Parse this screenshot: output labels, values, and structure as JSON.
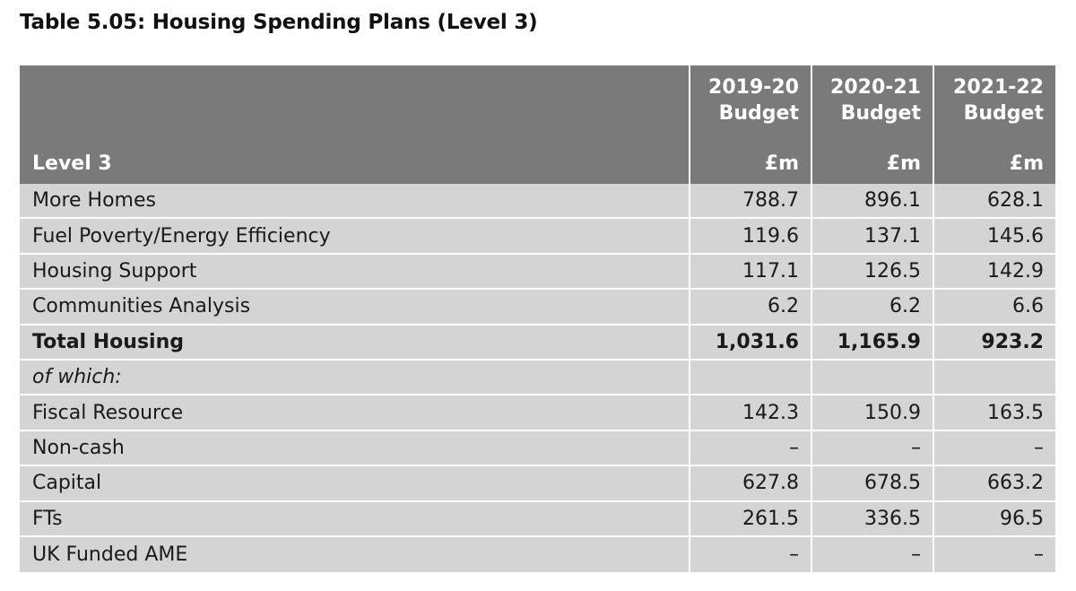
{
  "title": "Table 5.05: Housing Spending Plans (Level 3)",
  "header": {
    "level_label": "Level 3",
    "columns": [
      {
        "year": "2019-20",
        "type": "Budget",
        "unit": "£m"
      },
      {
        "year": "2020-21",
        "type": "Budget",
        "unit": "£m"
      },
      {
        "year": "2021-22",
        "type": "Budget",
        "unit": "£m"
      }
    ]
  },
  "rows": [
    {
      "label": "More Homes",
      "values": [
        "788.7",
        "896.1",
        "628.1"
      ]
    },
    {
      "label": "Fuel Poverty/Energy Efficiency",
      "values": [
        "119.6",
        "137.1",
        "145.6"
      ]
    },
    {
      "label": "Housing Support",
      "values": [
        "117.1",
        "126.5",
        "142.9"
      ]
    },
    {
      "label": "Communities Analysis",
      "values": [
        "6.2",
        "6.2",
        "6.6"
      ]
    },
    {
      "label": "Total Housing",
      "values": [
        "1,031.6",
        "1,165.9",
        "923.2"
      ]
    },
    {
      "label": "of which:",
      "values": [
        "",
        "",
        ""
      ]
    },
    {
      "label": "Fiscal Resource",
      "values": [
        "142.3",
        "150.9",
        "163.5"
      ]
    },
    {
      "label": "Non-cash",
      "values": [
        "–",
        "–",
        "–"
      ]
    },
    {
      "label": "Capital",
      "values": [
        "627.8",
        "678.5",
        "663.2"
      ]
    },
    {
      "label": "FTs",
      "values": [
        "261.5",
        "336.5",
        "96.5"
      ]
    },
    {
      "label": "UK Funded AME",
      "values": [
        "–",
        "–",
        "–"
      ]
    }
  ]
}
